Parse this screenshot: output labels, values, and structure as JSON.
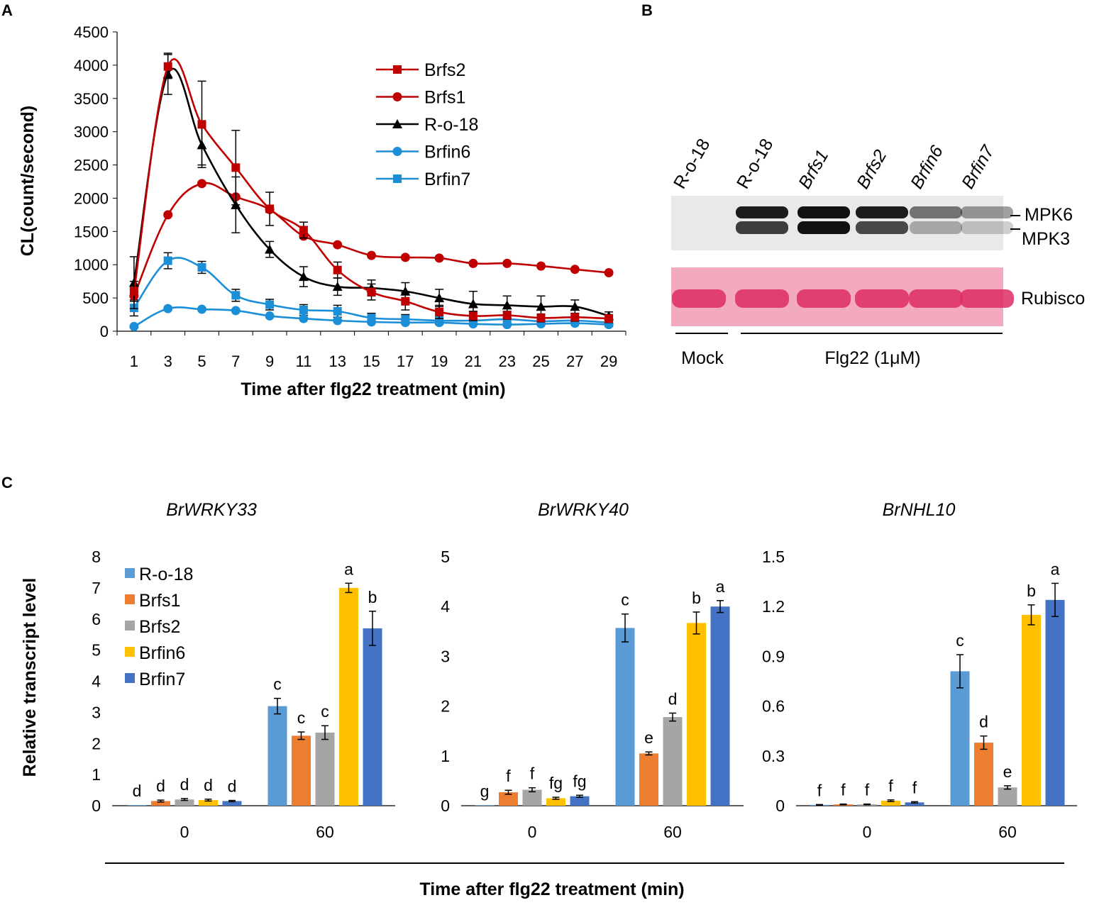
{
  "panel_labels": {
    "a": "A",
    "b": "B",
    "c": "C"
  },
  "chart_data": [
    {
      "id": "A",
      "type": "line",
      "title": "",
      "xlabel": "Time after flg22 treatment (min)",
      "ylabel": "CL(count/second)",
      "x": [
        1,
        3,
        5,
        7,
        9,
        11,
        13,
        15,
        17,
        19,
        21,
        23,
        25,
        27,
        29
      ],
      "ylim": [
        0,
        4500
      ],
      "yticks": [
        0,
        500,
        1000,
        1500,
        2000,
        2500,
        3000,
        3500,
        4000,
        4500
      ],
      "legend_position": "top-right",
      "series": [
        {
          "name": "Brfs2",
          "color": "#c00000",
          "marker": "square",
          "values": [
            600,
            3980,
            3110,
            2460,
            1840,
            1520,
            920,
            590,
            450,
            290,
            230,
            240,
            200,
            210,
            190
          ],
          "errors": [
            150,
            180,
            650,
            560,
            250,
            120,
            120,
            120,
            130,
            100,
            70,
            60,
            60,
            60,
            60
          ]
        },
        {
          "name": "Brfs1",
          "color": "#c00000",
          "marker": "circle",
          "values": [
            530,
            1750,
            2220,
            2020,
            1830,
            1430,
            1300,
            1140,
            1110,
            1100,
            1020,
            1020,
            980,
            930,
            880
          ]
        },
        {
          "name": "R-o-18",
          "color": "#000000",
          "marker": "triangle",
          "values": [
            730,
            3870,
            2800,
            1900,
            1230,
            820,
            670,
            650,
            600,
            500,
            410,
            390,
            370,
            370,
            230
          ],
          "errors": [
            390,
            310,
            300,
            420,
            120,
            150,
            130,
            120,
            130,
            130,
            190,
            140,
            160,
            100,
            60
          ]
        },
        {
          "name": "Brfin6",
          "color": "#1b8ed8",
          "marker": "circle",
          "values": [
            70,
            340,
            330,
            310,
            230,
            190,
            160,
            140,
            130,
            130,
            110,
            100,
            110,
            120,
            100
          ]
        },
        {
          "name": "Brfin7",
          "color": "#1b8ed8",
          "marker": "square",
          "values": [
            350,
            1060,
            960,
            540,
            400,
            320,
            300,
            200,
            180,
            160,
            160,
            180,
            150,
            160,
            130
          ],
          "errors": [
            120,
            120,
            90,
            90,
            80,
            80,
            90,
            70,
            70,
            60,
            60,
            60,
            60,
            60,
            60
          ]
        }
      ]
    },
    {
      "id": "C1",
      "type": "bar",
      "title": "BrWRKY33",
      "xlabel": "",
      "ylabel": "Relative transcript level",
      "categories": [
        "0",
        "60"
      ],
      "ylim": [
        0,
        8
      ],
      "yticks": [
        "0",
        "1",
        "2",
        "3",
        "4",
        "5",
        "6",
        "7",
        "8"
      ],
      "legend_position": "top-left",
      "series": [
        {
          "name": "R-o-18",
          "color": "#5b9bd5",
          "values": [
            0.02,
            3.2
          ],
          "errors": [
            0,
            0.25
          ],
          "letters": [
            "d",
            "c"
          ]
        },
        {
          "name": "Brfs1",
          "color": "#ed7d31",
          "values": [
            0.15,
            2.25
          ],
          "errors": [
            0.03,
            0.12
          ],
          "letters": [
            "d",
            "c"
          ]
        },
        {
          "name": "Brfs2",
          "color": "#a5a5a5",
          "values": [
            0.2,
            2.35
          ],
          "errors": [
            0.03,
            0.22
          ],
          "letters": [
            "d",
            "c"
          ]
        },
        {
          "name": "Brfin6",
          "color": "#ffc000",
          "values": [
            0.18,
            7.0
          ],
          "errors": [
            0.03,
            0.15
          ],
          "letters": [
            "d",
            "a"
          ]
        },
        {
          "name": "Brfin7",
          "color": "#4472c4",
          "values": [
            0.15,
            5.7
          ],
          "errors": [
            0.02,
            0.55
          ],
          "letters": [
            "d",
            "b"
          ]
        }
      ]
    },
    {
      "id": "C2",
      "type": "bar",
      "title": "BrWRKY40",
      "xlabel": "",
      "ylabel": "",
      "categories": [
        "0",
        "60"
      ],
      "ylim": [
        0,
        5
      ],
      "yticks": [
        "0",
        "1",
        "2",
        "3",
        "4",
        "5"
      ],
      "series": [
        {
          "name": "R-o-18",
          "color": "#5b9bd5",
          "values": [
            0.01,
            3.57
          ],
          "errors": [
            0,
            0.28
          ],
          "letters": [
            "g",
            "c"
          ]
        },
        {
          "name": "Brfs1",
          "color": "#ed7d31",
          "values": [
            0.27,
            1.05
          ],
          "errors": [
            0.04,
            0.03
          ],
          "letters": [
            "f",
            "e"
          ]
        },
        {
          "name": "Brfs2",
          "color": "#a5a5a5",
          "values": [
            0.32,
            1.78
          ],
          "errors": [
            0.04,
            0.08
          ],
          "letters": [
            "f",
            "d"
          ]
        },
        {
          "name": "Brfin6",
          "color": "#ffc000",
          "values": [
            0.15,
            3.67
          ],
          "errors": [
            0.02,
            0.22
          ],
          "letters": [
            "fg",
            "b"
          ]
        },
        {
          "name": "Brfin7",
          "color": "#4472c4",
          "values": [
            0.19,
            4.0
          ],
          "errors": [
            0.02,
            0.12
          ],
          "letters": [
            "fg",
            "a"
          ]
        }
      ]
    },
    {
      "id": "C3",
      "type": "bar",
      "title": "BrNHL10",
      "xlabel": "",
      "ylabel": "",
      "categories": [
        "0",
        "60"
      ],
      "ylim": [
        0,
        1.5
      ],
      "yticks": [
        "0",
        "0.3",
        "0.6",
        "0.9",
        "1.2",
        "1.5"
      ],
      "series": [
        {
          "name": "R-o-18",
          "color": "#5b9bd5",
          "values": [
            0.005,
            0.81
          ],
          "errors": [
            0.002,
            0.1
          ],
          "letters": [
            "f",
            "c"
          ]
        },
        {
          "name": "Brfs1",
          "color": "#ed7d31",
          "values": [
            0.008,
            0.38
          ],
          "errors": [
            0.002,
            0.04
          ],
          "letters": [
            "f",
            "d"
          ]
        },
        {
          "name": "Brfs2",
          "color": "#a5a5a5",
          "values": [
            0.008,
            0.11
          ],
          "errors": [
            0.002,
            0.01
          ],
          "letters": [
            "f",
            "e"
          ]
        },
        {
          "name": "Brfin6",
          "color": "#ffc000",
          "values": [
            0.03,
            1.15
          ],
          "errors": [
            0.005,
            0.06
          ],
          "letters": [
            "f",
            "b"
          ]
        },
        {
          "name": "Brfin7",
          "color": "#4472c4",
          "values": [
            0.02,
            1.24
          ],
          "errors": [
            0.004,
            0.1
          ],
          "letters": [
            "f",
            "a"
          ]
        }
      ]
    }
  ],
  "panel_c_xlabel": "Time after flg22 treatment (min)",
  "blot": {
    "lanes": [
      "R-o-18",
      "R-o-18",
      "Brfs1",
      "Brfs2",
      "Brfin6",
      "Brfin7"
    ],
    "lane_italic": [
      false,
      false,
      true,
      true,
      true,
      true
    ],
    "band_labels": [
      "MPK6",
      "MPK3"
    ],
    "loading_label": "Rubisco",
    "group_mock": "Mock",
    "group_flg22": "Flg22 (1μM)",
    "band_intensity_mpk6": [
      0,
      0.95,
      1.0,
      0.95,
      0.55,
      0.4
    ],
    "band_intensity_mpk3": [
      0,
      0.8,
      1.0,
      0.75,
      0.3,
      0.2
    ],
    "gel_color": "#e9e9e9",
    "ponceau_bg": "#f3a9be",
    "ponceau_band": "#dd2d64"
  }
}
